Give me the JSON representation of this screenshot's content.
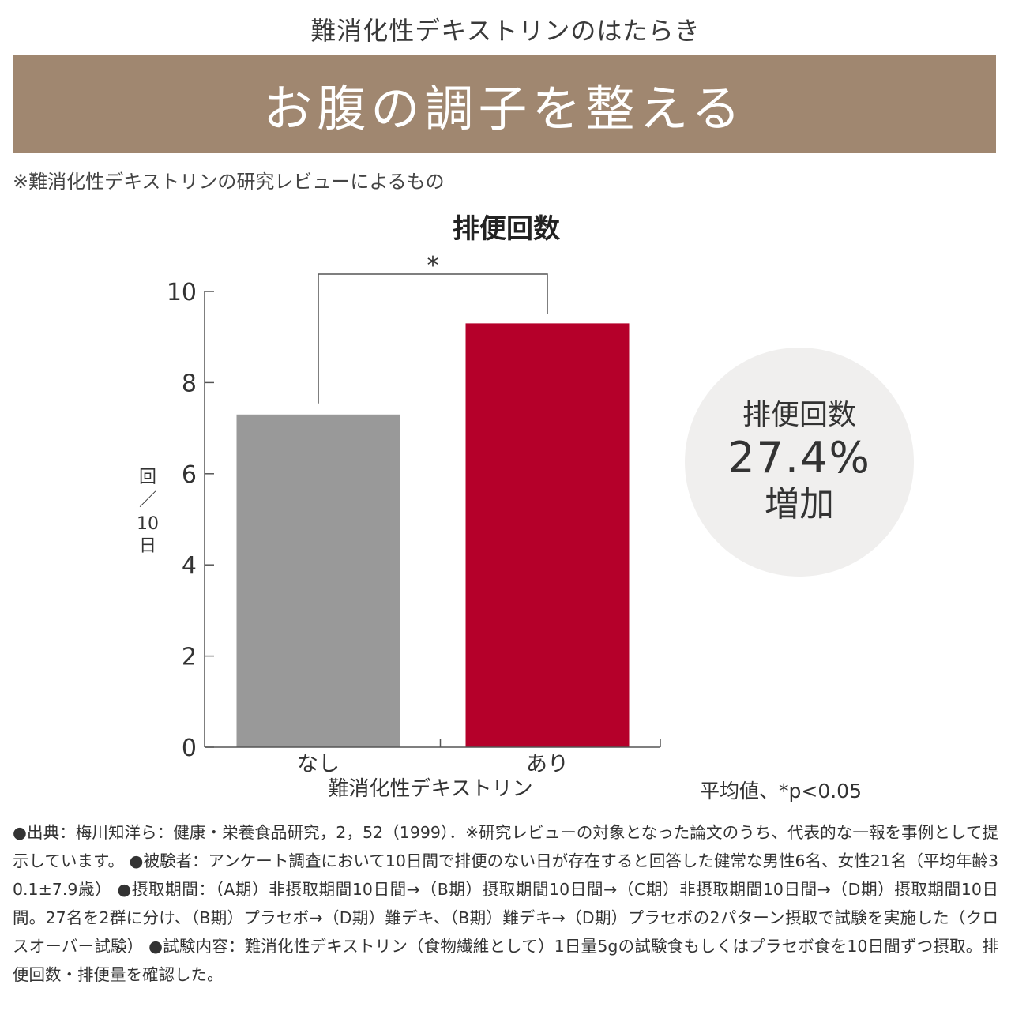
{
  "header": {
    "eyebrow": "難消化性デキストリンのはたらき",
    "title": "お腹の調子を整える",
    "note": "※難消化性デキストリンの研究レビューによるもの"
  },
  "colors": {
    "banner": "#a08770",
    "bar_without": "#999999",
    "bar_with": "#b5002a",
    "badge_bg": "#f0efee"
  },
  "chart_data": {
    "type": "bar",
    "title": "排便回数",
    "categories": [
      "なし",
      "あり"
    ],
    "values": [
      7.3,
      9.3
    ],
    "xlabel": "難消化性デキストリン",
    "ylabel_lines": [
      "回",
      "／",
      "10",
      "日"
    ],
    "ylim": [
      0,
      10
    ],
    "yticks": [
      0,
      2,
      4,
      6,
      8,
      10
    ],
    "significance_marker": "*",
    "grid": false
  },
  "badge": {
    "line1": "排便回数",
    "line2": "27.4%",
    "line3": "増加"
  },
  "stats_note": "平均値、*p<0.05",
  "footnote": "●出典：梅川知洋ら：健康・栄養食品研究，2，52（1999）．※研究レビューの対象となった論文のうち、代表的な一報を事例として提示しています。 ●被験者：アンケート調査において10日間で排便のない日が存在すると回答した健常な男性6名、女性21名（平均年齢30.1±7.9歳） ●摂取期間：（A期）非摂取期間10日間→（B期）摂取期間10日間→（C期）非摂取期間10日間→（D期）摂取期間10日間。27名を2群に分け、（B期）プラセボ→（D期）難デキ、（B期）難デキ→（D期）プラセボの2パターン摂取で試験を実施した（クロスオーバー試験） ●試験内容：難消化性デキストリン（食物繊維として）1日量5gの試験食もしくはプラセボ食を10日間ずつ摂取。排便回数・排便量を確認した。"
}
